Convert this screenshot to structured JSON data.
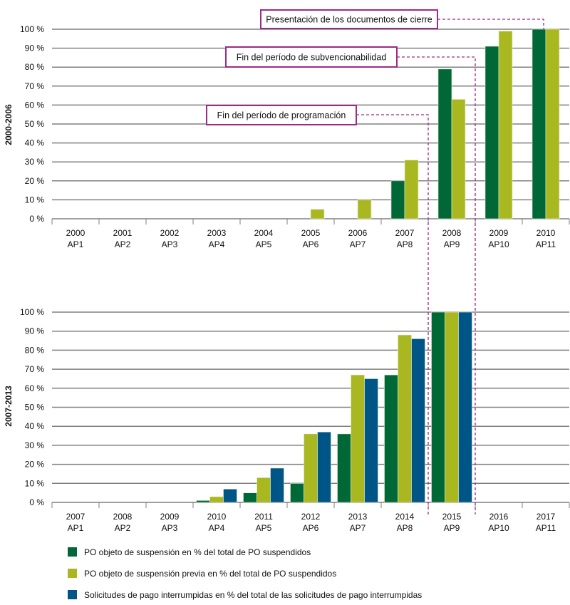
{
  "chart_data": [
    {
      "type": "bar",
      "panel_label": "2000-2006",
      "categories": [
        [
          "2000",
          "AP1"
        ],
        [
          "2001",
          "AP2"
        ],
        [
          "2002",
          "AP3"
        ],
        [
          "2003",
          "AP4"
        ],
        [
          "2004",
          "AP5"
        ],
        [
          "2005",
          "AP6"
        ],
        [
          "2006",
          "AP7"
        ],
        [
          "2007",
          "AP8"
        ],
        [
          "2008",
          "AP9"
        ],
        [
          "2009",
          "AP10"
        ],
        [
          "2010",
          "AP11"
        ]
      ],
      "ylim": [
        0,
        100
      ],
      "yticks": [
        "0 %",
        "10 %",
        "20 %",
        "30 %",
        "40 %",
        "50 %",
        "60 %",
        "70 %",
        "80 %",
        "90 %",
        "100 %"
      ],
      "grid": true,
      "series": [
        {
          "key": "s1",
          "values": [
            0,
            0,
            0,
            0,
            0,
            0,
            0,
            20,
            79,
            91,
            100
          ]
        },
        {
          "key": "s2",
          "values": [
            0,
            0,
            0,
            0,
            0,
            5,
            10,
            31,
            63,
            99,
            100
          ]
        }
      ],
      "annotations": [
        {
          "text": "Presentación de los documentos de cierre",
          "category": "2010"
        },
        {
          "text": "Fin del período de subvencionabilidad",
          "category": "2008"
        },
        {
          "text": "Fin del período de programación",
          "category": "2007"
        }
      ]
    },
    {
      "type": "bar",
      "panel_label": "2007-2013",
      "categories": [
        [
          "2007",
          "AP1"
        ],
        [
          "2008",
          "AP2"
        ],
        [
          "2009",
          "AP3"
        ],
        [
          "2010",
          "AP4"
        ],
        [
          "2011",
          "AP5"
        ],
        [
          "2012",
          "AP6"
        ],
        [
          "2013",
          "AP7"
        ],
        [
          "2014",
          "AP8"
        ],
        [
          "2015",
          "AP9"
        ],
        [
          "2016",
          "AP10"
        ],
        [
          "2017",
          "AP11"
        ]
      ],
      "ylim": [
        0,
        100
      ],
      "yticks": [
        "0 %",
        "10 %",
        "20 %",
        "30 %",
        "40 %",
        "50 %",
        "60 %",
        "70 %",
        "80 %",
        "90 %",
        "100 %"
      ],
      "grid": true,
      "series": [
        {
          "key": "s1",
          "values": [
            0,
            0,
            0,
            1,
            5,
            10,
            36,
            67,
            100,
            0,
            0
          ]
        },
        {
          "key": "s2",
          "values": [
            0,
            0,
            0,
            3,
            13,
            36,
            67,
            88,
            100,
            0,
            0
          ]
        },
        {
          "key": "s3",
          "values": [
            0,
            0,
            0,
            7,
            18,
            37,
            65,
            86,
            100,
            0,
            0
          ]
        }
      ]
    }
  ],
  "legend": [
    {
      "key": "s1",
      "name": "PO objeto de suspensión en % del total de PO suspendidos",
      "color": "#006837"
    },
    {
      "key": "s2",
      "name": "PO objeto de suspensión previa en % del total de PO suspendidos",
      "color": "#a9b820"
    },
    {
      "key": "s3",
      "name": "Solicitudes de pago interrumpidas en % del total de las solicitudes de pago interrumpidas",
      "color": "#005587"
    }
  ],
  "colors": {
    "annotation": "#9c2a8a",
    "grid": "#808080"
  }
}
